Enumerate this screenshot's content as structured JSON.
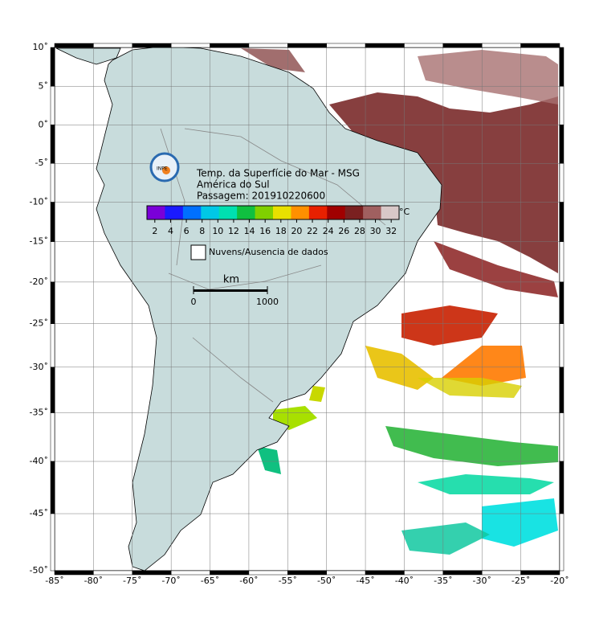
{
  "map": {
    "title_lines": [
      "Temp. da Superfície do Mar - MSG",
      "América do Sul",
      "Passagem: 201910220600"
    ],
    "logo_text": "INPE",
    "colorbar": {
      "range": [
        1,
        33
      ],
      "ticks": [
        2,
        4,
        6,
        8,
        10,
        12,
        14,
        16,
        18,
        20,
        22,
        24,
        26,
        28,
        30,
        32
      ],
      "unit": "°C",
      "colors": [
        "#7a00d8",
        "#1a1aff",
        "#0070ff",
        "#00c8e6",
        "#00e0b0",
        "#10c040",
        "#80d000",
        "#e8e000",
        "#ff9000",
        "#e82000",
        "#a00000",
        "#7a2020",
        "#a06060",
        "#d8c8c8"
      ]
    },
    "legend": "Nuvens/Ausencia de dados",
    "scale_bar": {
      "unit": "km",
      "labels": [
        0,
        1000
      ]
    },
    "lon_ticks": [
      {
        "value": -85,
        "label": "-85˚"
      },
      {
        "value": -80,
        "label": "-80˚"
      },
      {
        "value": -75,
        "label": "-75˚"
      },
      {
        "value": -70,
        "label": "-70˚"
      },
      {
        "value": -65,
        "label": "-65˚"
      },
      {
        "value": -60,
        "label": "-60˚"
      },
      {
        "value": -55,
        "label": "-55˚"
      },
      {
        "value": -50,
        "label": "-50˚"
      },
      {
        "value": -45,
        "label": "-45˚"
      },
      {
        "value": -40,
        "label": "-40˚"
      },
      {
        "value": -35,
        "label": "-35˚"
      },
      {
        "value": -30,
        "label": "-30˚"
      },
      {
        "value": -25,
        "label": "-25˚"
      },
      {
        "value": -20,
        "label": "-20˚"
      }
    ],
    "lat_ticks": [
      {
        "value": 10,
        "label": "10˚"
      },
      {
        "value": 5,
        "label": "5˚"
      },
      {
        "value": 0,
        "label": "0˚"
      },
      {
        "value": -5,
        "label": "-5˚"
      },
      {
        "value": -10,
        "label": "-10˚"
      },
      {
        "value": -15,
        "label": "-15˚"
      },
      {
        "value": -20,
        "label": "-20˚"
      },
      {
        "value": -25,
        "label": "-25˚"
      },
      {
        "value": -30,
        "label": "-30˚"
      },
      {
        "value": -35,
        "label": "-35˚"
      },
      {
        "value": -40,
        "label": "-40˚"
      },
      {
        "value": -45,
        "label": "-45˚"
      },
      {
        "value": -50,
        "label": "-50˚"
      }
    ]
  }
}
